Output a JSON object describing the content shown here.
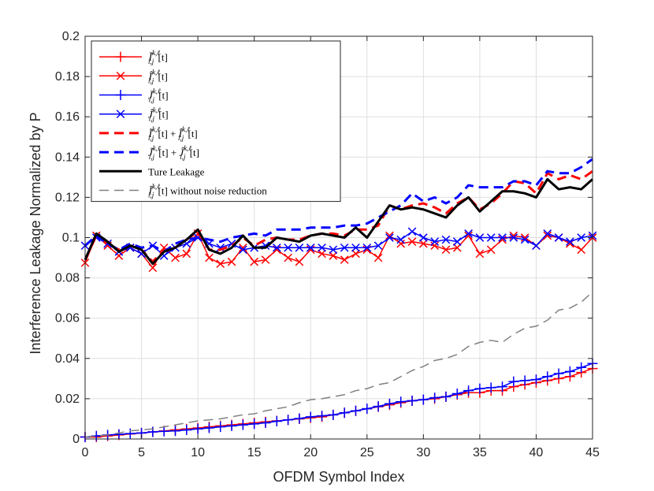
{
  "chart_data": {
    "type": "line",
    "xlabel": "OFDM Symbol Index",
    "ylabel": "Interference Leakage Normalized by P",
    "xlim": [
      0,
      45
    ],
    "ylim": [
      0,
      0.2
    ],
    "xticks": [
      0,
      5,
      10,
      15,
      20,
      25,
      30,
      35,
      40,
      45
    ],
    "yticks": [
      0,
      0.02,
      0.04,
      0.06,
      0.08,
      0.1,
      0.12,
      0.14,
      0.16,
      0.18,
      0.2
    ],
    "ytick_labels": [
      "0",
      "0.02",
      "0.04",
      "0.06",
      "0.08",
      "0.1",
      "0.12",
      "0.14",
      "0.16",
      "0.18",
      "0.2"
    ],
    "grid": true,
    "legend_position": "top-left",
    "x": [
      0,
      1,
      2,
      3,
      4,
      5,
      6,
      7,
      8,
      9,
      10,
      11,
      12,
      13,
      14,
      15,
      16,
      17,
      18,
      19,
      20,
      21,
      22,
      23,
      24,
      25,
      26,
      27,
      28,
      29,
      30,
      31,
      32,
      33,
      34,
      35,
      36,
      37,
      38,
      39,
      40,
      41,
      42,
      43,
      44,
      45
    ],
    "series": [
      {
        "legend": {
          "base": "Ĩ",
          "sub": "i,j",
          "sup": "k,ℓ",
          "suffix": "[t]"
        },
        "color": "#ff0000",
        "dash": "solid",
        "width": 1.5,
        "marker": "plus",
        "values": [
          0.001,
          0.001,
          0.0015,
          0.002,
          0.0025,
          0.003,
          0.0035,
          0.004,
          0.0045,
          0.005,
          0.0055,
          0.006,
          0.0065,
          0.007,
          0.0075,
          0.008,
          0.0085,
          0.009,
          0.0095,
          0.01,
          0.0105,
          0.011,
          0.012,
          0.013,
          0.014,
          0.015,
          0.016,
          0.017,
          0.018,
          0.019,
          0.0195,
          0.02,
          0.021,
          0.022,
          0.023,
          0.023,
          0.024,
          0.024,
          0.026,
          0.027,
          0.028,
          0.029,
          0.03,
          0.031,
          0.033,
          0.035
        ]
      },
      {
        "legend": {
          "base": "Î",
          "sub": "i,j",
          "sup": "k,ℓ",
          "suffix": "[t]"
        },
        "color": "#ff0000",
        "dash": "solid",
        "width": 1.5,
        "marker": "x",
        "values": [
          0.0875,
          0.101,
          0.096,
          0.091,
          0.095,
          0.092,
          0.085,
          0.095,
          0.09,
          0.092,
          0.102,
          0.09,
          0.087,
          0.088,
          0.095,
          0.088,
          0.089,
          0.094,
          0.09,
          0.088,
          0.094,
          0.092,
          0.091,
          0.089,
          0.092,
          0.094,
          0.09,
          0.101,
          0.097,
          0.098,
          0.097,
          0.096,
          0.094,
          0.095,
          0.101,
          0.092,
          0.094,
          0.099,
          0.101,
          0.1,
          0.096,
          0.101,
          0.1,
          0.097,
          0.094,
          0.1
        ]
      },
      {
        "legend": {
          "base": "J̃",
          "sub": "i,j",
          "sup": "k,ℓ",
          "suffix": "[t]"
        },
        "color": "#0000ff",
        "dash": "solid",
        "width": 1.5,
        "marker": "plus",
        "values": [
          0.001,
          0.0015,
          0.002,
          0.0023,
          0.0027,
          0.003,
          0.0035,
          0.0038,
          0.004,
          0.0045,
          0.005,
          0.0055,
          0.006,
          0.0065,
          0.007,
          0.0075,
          0.008,
          0.0088,
          0.0095,
          0.0102,
          0.011,
          0.0115,
          0.012,
          0.013,
          0.014,
          0.015,
          0.0162,
          0.0175,
          0.0185,
          0.019,
          0.0195,
          0.0205,
          0.021,
          0.0225,
          0.024,
          0.025,
          0.0255,
          0.026,
          0.0285,
          0.029,
          0.0295,
          0.031,
          0.0325,
          0.0335,
          0.0355,
          0.0375
        ]
      },
      {
        "legend": {
          "base": "Ĵ",
          "sub": "i,j",
          "sup": "k,ℓ",
          "suffix": "[t]"
        },
        "color": "#0000ff",
        "dash": "solid",
        "width": 1.5,
        "marker": "x",
        "values": [
          0.096,
          0.1,
          0.097,
          0.093,
          0.095,
          0.092,
          0.096,
          0.091,
          0.095,
          0.097,
          0.1,
          0.097,
          0.095,
          0.097,
          0.094,
          0.095,
          0.096,
          0.095,
          0.095,
          0.095,
          0.095,
          0.095,
          0.094,
          0.095,
          0.095,
          0.095,
          0.096,
          0.1,
          0.099,
          0.103,
          0.1,
          0.098,
          0.099,
          0.098,
          0.102,
          0.1,
          0.1,
          0.1,
          0.1,
          0.099,
          0.096,
          0.102,
          0.1,
          0.098,
          0.1,
          0.101
        ]
      },
      {
        "legend": {
          "base": "Ĩ",
          "sub": "i,j",
          "sup": "k,ℓ",
          "suffix": "[t] +",
          "base2": "Î",
          "sub2": "i,j",
          "sup2": "k,ℓ",
          "suffix2": "[t]"
        },
        "color": "#ff0000",
        "dash": "dashed",
        "width": 3,
        "marker": "none",
        "values": [
          0.089,
          0.101,
          0.097,
          0.094,
          0.096,
          0.094,
          0.088,
          0.094,
          0.095,
          0.099,
          0.103,
          0.094,
          0.094,
          0.096,
          0.1,
          0.096,
          0.099,
          0.1,
          0.099,
          0.099,
          0.101,
          0.102,
          0.102,
          0.101,
          0.104,
          0.104,
          0.106,
          0.116,
          0.114,
          0.116,
          0.117,
          0.115,
          0.112,
          0.117,
          0.12,
          0.114,
          0.117,
          0.122,
          0.128,
          0.127,
          0.122,
          0.132,
          0.129,
          0.131,
          0.129,
          0.133
        ]
      },
      {
        "legend": {
          "base": "J̃",
          "sub": "i,j",
          "sup": "k,ℓ",
          "suffix": "[t] +",
          "base2": "Ĵ",
          "sub2": "i,j",
          "sup2": "k,ℓ",
          "suffix2": "[t]"
        },
        "color": "#0000ff",
        "dash": "dashed",
        "width": 3,
        "marker": "none",
        "values": [
          0.096,
          0.101,
          0.097,
          0.094,
          0.097,
          0.095,
          0.096,
          0.093,
          0.097,
          0.099,
          0.1,
          0.099,
          0.098,
          0.1,
          0.101,
          0.102,
          0.101,
          0.104,
          0.104,
          0.104,
          0.105,
          0.105,
          0.105,
          0.106,
          0.106,
          0.107,
          0.11,
          0.113,
          0.116,
          0.122,
          0.118,
          0.12,
          0.117,
          0.12,
          0.126,
          0.125,
          0.125,
          0.125,
          0.128,
          0.128,
          0.126,
          0.133,
          0.132,
          0.132,
          0.135,
          0.139
        ]
      },
      {
        "legend": {
          "text": "Ture Leakage"
        },
        "color": "#000000",
        "dash": "solid",
        "width": 3,
        "marker": "none",
        "values": [
          0.089,
          0.102,
          0.098,
          0.093,
          0.096,
          0.094,
          0.087,
          0.093,
          0.095,
          0.099,
          0.104,
          0.094,
          0.092,
          0.095,
          0.101,
          0.095,
          0.095,
          0.1,
          0.099,
          0.098,
          0.101,
          0.102,
          0.101,
          0.1,
          0.105,
          0.1,
          0.108,
          0.116,
          0.114,
          0.115,
          0.114,
          0.112,
          0.11,
          0.116,
          0.12,
          0.113,
          0.118,
          0.123,
          0.123,
          0.122,
          0.12,
          0.129,
          0.124,
          0.125,
          0.124,
          0.129
        ]
      },
      {
        "legend": {
          "base": "Ĩ",
          "sub": "i,j",
          "sup": "k,ℓ",
          "suffix": "[t] without noise reduction"
        },
        "color": "#808080",
        "dash": "dashed",
        "width": 1.5,
        "marker": "none",
        "values": [
          0.001,
          0.0015,
          0.002,
          0.003,
          0.004,
          0.0045,
          0.005,
          0.006,
          0.007,
          0.008,
          0.009,
          0.0095,
          0.01,
          0.011,
          0.012,
          0.0125,
          0.014,
          0.015,
          0.016,
          0.018,
          0.0195,
          0.02,
          0.021,
          0.022,
          0.024,
          0.025,
          0.027,
          0.028,
          0.031,
          0.034,
          0.036,
          0.039,
          0.04,
          0.042,
          0.046,
          0.048,
          0.049,
          0.048,
          0.052,
          0.055,
          0.056,
          0.059,
          0.064,
          0.065,
          0.068,
          0.073
        ]
      }
    ]
  }
}
